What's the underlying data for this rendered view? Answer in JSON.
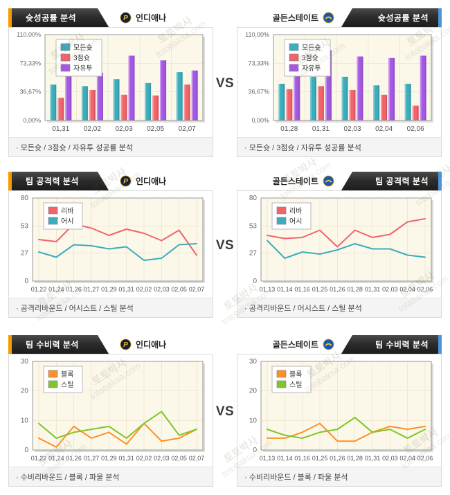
{
  "page": {
    "vs_label": "VS"
  },
  "watermark": {
    "line1": "토토박사",
    "line2": "totobaksa.com"
  },
  "teams": {
    "left": {
      "name": "인디애나",
      "logo": "indiana-pacers-logo"
    },
    "right": {
      "name": "골든스테이트",
      "logo": "golden-state-warriors-logo"
    }
  },
  "rows": [
    {
      "tab_title": "슛성공률 분석",
      "caption": "· 모든슛 / 3점슛 / 자유투 성공률 분석"
    },
    {
      "tab_title": "팀 공격력 분석",
      "caption": "· 공격리바운드 / 어시스트 / 스틸 분석"
    },
    {
      "tab_title": "팀 수비력 분석",
      "caption": "· 수비리바운드 / 블록 / 파울 분석"
    }
  ],
  "colors": {
    "accent_left": "#F59B00",
    "accent_right": "#4E94D8",
    "tab_bg": "#2A2A2A",
    "plot_bg": "#FBF7E9",
    "grid": "#EFE8D5",
    "plot_border": "#979797",
    "series_teal": "#3CADBD",
    "series_red": "#F2636B",
    "series_purple": "#A558E3",
    "series_orange": "#FF8F26",
    "series_green": "#7FC626"
  },
  "chart_data": [
    {
      "id": "shot-success-indiana",
      "type": "bar",
      "team": "인디애나",
      "title": "슛성공률 분석",
      "categories": [
        "01,31",
        "02,02",
        "02,03",
        "02,05",
        "02,07"
      ],
      "series": [
        {
          "name": "모든슛",
          "color": "#3CADBD",
          "values": [
            46,
            44,
            53,
            48,
            62
          ]
        },
        {
          "name": "3점슛",
          "color": "#F2636B",
          "values": [
            29,
            39,
            33,
            32,
            46
          ]
        },
        {
          "name": "자유투",
          "color": "#A558E3",
          "values": [
            58,
            61,
            83,
            77,
            64
          ]
        }
      ],
      "ylim": [
        0,
        110
      ],
      "yticks": [
        {
          "value": 0,
          "label": "0,00%"
        },
        {
          "value": 36.67,
          "label": "36,67%"
        },
        {
          "value": 73.33,
          "label": "73,33%"
        },
        {
          "value": 110,
          "label": "110,00%"
        }
      ],
      "legend_position": "top-left",
      "grid": true
    },
    {
      "id": "shot-success-golden-state",
      "type": "bar",
      "team": "골든스테이트",
      "title": "슛성공률 분석",
      "categories": [
        "01,28",
        "01,31",
        "02,03",
        "02,04",
        "02,06"
      ],
      "series": [
        {
          "name": "모든슛",
          "color": "#3CADBD",
          "values": [
            47,
            56,
            56,
            45,
            47
          ]
        },
        {
          "name": "3점슛",
          "color": "#F2636B",
          "values": [
            40,
            44,
            39,
            33,
            19
          ]
        },
        {
          "name": "자유투",
          "color": "#A558E3",
          "values": [
            59,
            90,
            82,
            80,
            83
          ]
        }
      ],
      "ylim": [
        0,
        110
      ],
      "yticks": [
        {
          "value": 0,
          "label": "0,00%"
        },
        {
          "value": 36.67,
          "label": "36,67%"
        },
        {
          "value": 73.33,
          "label": "73,33%"
        },
        {
          "value": 110,
          "label": "110,00%"
        }
      ],
      "legend_position": "top-left",
      "grid": true
    },
    {
      "id": "offense-indiana",
      "type": "line",
      "team": "인디애나",
      "title": "팀 공격력 분석",
      "categories": [
        "01,22",
        "01,24",
        "01,26",
        "01,27",
        "01,29",
        "01,31",
        "02,02",
        "02,03",
        "02,05",
        "02,07"
      ],
      "series": [
        {
          "name": "리바",
          "color": "#F2636B",
          "values": [
            40,
            38,
            55,
            51,
            44,
            50,
            46,
            39,
            49,
            25
          ]
        },
        {
          "name": "어시",
          "color": "#3CADBD",
          "values": [
            28,
            23,
            35,
            34,
            31,
            33,
            20,
            22,
            35,
            36
          ]
        }
      ],
      "ylim": [
        0,
        80
      ],
      "yticks": [
        {
          "value": 0,
          "label": "0"
        },
        {
          "value": 27,
          "label": "27"
        },
        {
          "value": 53,
          "label": "53"
        },
        {
          "value": 80,
          "label": "80"
        }
      ],
      "legend_position": "top-left",
      "grid": true
    },
    {
      "id": "offense-golden-state",
      "type": "line",
      "team": "골든스테이트",
      "title": "팀 공격력 분석",
      "categories": [
        "01,13",
        "01,14",
        "01,16",
        "01,25",
        "01,26",
        "01,28",
        "01,31",
        "02,03",
        "02,04",
        "02,06"
      ],
      "series": [
        {
          "name": "리바",
          "color": "#F2636B",
          "values": [
            44,
            41,
            42,
            49,
            33,
            49,
            42,
            45,
            57,
            60
          ]
        },
        {
          "name": "어시",
          "color": "#3CADBD",
          "values": [
            39,
            22,
            28,
            26,
            30,
            36,
            31,
            31,
            25,
            23
          ]
        }
      ],
      "ylim": [
        0,
        80
      ],
      "yticks": [
        {
          "value": 0,
          "label": "0"
        },
        {
          "value": 27,
          "label": "27"
        },
        {
          "value": 53,
          "label": "53"
        },
        {
          "value": 80,
          "label": "80"
        }
      ],
      "legend_position": "top-left",
      "grid": true
    },
    {
      "id": "defense-indiana",
      "type": "line",
      "team": "인디애나",
      "title": "팀 수비력 분석",
      "categories": [
        "01,22",
        "01,24",
        "01,26",
        "01,27",
        "01,29",
        "01,31",
        "02,02",
        "02,03",
        "02,05",
        "02,07"
      ],
      "series": [
        {
          "name": "블록",
          "color": "#FF8F26",
          "values": [
            4,
            1,
            8,
            4,
            6,
            2,
            9,
            3,
            4,
            7
          ]
        },
        {
          "name": "스틸",
          "color": "#7FC626",
          "values": [
            9,
            4,
            6,
            7,
            8,
            4,
            9,
            13,
            5,
            7
          ]
        }
      ],
      "ylim": [
        0,
        30
      ],
      "yticks": [
        {
          "value": 0,
          "label": "0"
        },
        {
          "value": 10,
          "label": "10"
        },
        {
          "value": 20,
          "label": "20"
        },
        {
          "value": 30,
          "label": "30"
        }
      ],
      "legend_position": "top-left",
      "grid": true
    },
    {
      "id": "defense-golden-state",
      "type": "line",
      "team": "골든스테이트",
      "title": "팀 수비력 분석",
      "categories": [
        "01,13",
        "01,14",
        "01,16",
        "01,25",
        "01,26",
        "01,28",
        "01,31",
        "02,03",
        "02,04",
        "02,06"
      ],
      "series": [
        {
          "name": "블록",
          "color": "#FF8F26",
          "values": [
            4,
            4,
            6,
            9,
            3,
            3,
            6,
            8,
            7,
            8
          ]
        },
        {
          "name": "스틸",
          "color": "#7FC626",
          "values": [
            7,
            5,
            4,
            6,
            7,
            11,
            6,
            7,
            4,
            7
          ]
        }
      ],
      "ylim": [
        0,
        30
      ],
      "yticks": [
        {
          "value": 0,
          "label": "0"
        },
        {
          "value": 10,
          "label": "10"
        },
        {
          "value": 20,
          "label": "20"
        },
        {
          "value": 30,
          "label": "30"
        }
      ],
      "legend_position": "top-left",
      "grid": true
    }
  ]
}
